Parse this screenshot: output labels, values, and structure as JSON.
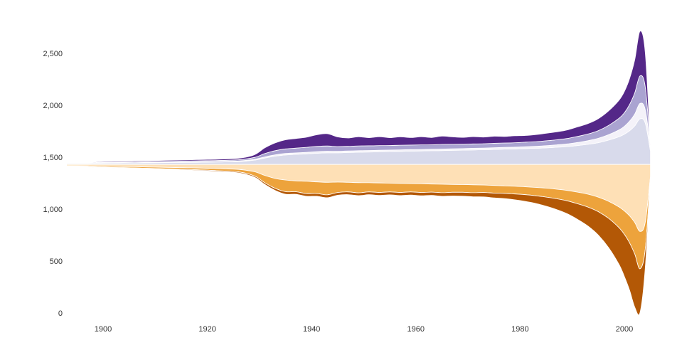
{
  "page": {
    "background": "#ffffff"
  },
  "chart_data": {
    "type": "area",
    "subtype": "streamgraph",
    "title": "",
    "xlabel": "",
    "ylabel": "",
    "legend": "none",
    "grid": "off",
    "axis_color": "#333333",
    "center_value": 1430,
    "y_axis_range": [
      0,
      2850
    ],
    "x_range": [
      1893,
      2005
    ],
    "x_ticks": [
      {
        "value": 1900,
        "label": "1900"
      },
      {
        "value": 1920,
        "label": "1920"
      },
      {
        "value": 1940,
        "label": "1940"
      },
      {
        "value": 1960,
        "label": "1960"
      },
      {
        "value": 1980,
        "label": "1980"
      },
      {
        "value": 2000,
        "label": "2000"
      }
    ],
    "y_ticks": [
      {
        "value": 0,
        "label": "0"
      },
      {
        "value": 500,
        "label": "500"
      },
      {
        "value": 1000,
        "label": "1,000"
      },
      {
        "value": 1500,
        "label": "1,500"
      },
      {
        "value": 2000,
        "label": "2,000"
      },
      {
        "value": 2500,
        "label": "2,500"
      }
    ],
    "upper_order": [
      "lavender",
      "pale-lavender",
      "medium-purple",
      "dark-purple"
    ],
    "lower_order": [
      "cream",
      "orange",
      "dark-orange"
    ],
    "years": [
      1893,
      1897,
      1900,
      1903,
      1906,
      1910,
      1914,
      1918,
      1922,
      1926,
      1929,
      1931,
      1933,
      1935,
      1937,
      1939,
      1941,
      1943,
      1945,
      1947,
      1949,
      1951,
      1953,
      1955,
      1957,
      1959,
      1961,
      1963,
      1965,
      1967,
      1969,
      1971,
      1973,
      1975,
      1977,
      1979,
      1981,
      1983,
      1985,
      1987,
      1989,
      1991,
      1993,
      1995,
      1997,
      1999,
      2000,
      2001,
      2002,
      2003,
      2004,
      2005
    ],
    "series": [
      {
        "name": "dark-purple",
        "color": "#542788",
        "values": [
          4,
          5,
          7,
          8,
          8,
          9,
          10,
          11,
          12,
          14,
          25,
          55,
          75,
          88,
          92,
          98,
          112,
          118,
          92,
          80,
          88,
          78,
          85,
          75,
          80,
          72,
          78,
          70,
          80,
          72,
          66,
          70,
          64,
          68,
          63,
          66,
          64,
          68,
          72,
          76,
          82,
          92,
          100,
          115,
          140,
          175,
          205,
          250,
          320,
          430,
          330,
          0
        ]
      },
      {
        "name": "medium-purple",
        "color": "#aaa3d1",
        "values": [
          4,
          4,
          6,
          6,
          7,
          8,
          9,
          10,
          10,
          12,
          18,
          32,
          40,
          44,
          46,
          48,
          50,
          50,
          46,
          45,
          46,
          45,
          45,
          44,
          45,
          44,
          44,
          43,
          44,
          43,
          42,
          42,
          42,
          43,
          42,
          43,
          44,
          45,
          47,
          49,
          52,
          58,
          64,
          74,
          90,
          112,
          130,
          160,
          205,
          265,
          220,
          15
        ]
      },
      {
        "name": "pale-lavender",
        "color": "#f4f2f9",
        "values": [
          2,
          2,
          3,
          3,
          3,
          4,
          4,
          5,
          5,
          6,
          8,
          11,
          13,
          14,
          14,
          15,
          16,
          16,
          15,
          15,
          15,
          15,
          15,
          15,
          15,
          15,
          15,
          15,
          15,
          15,
          15,
          16,
          16,
          16,
          17,
          17,
          18,
          19,
          21,
          23,
          26,
          30,
          35,
          42,
          52,
          66,
          76,
          92,
          115,
          148,
          130,
          40
        ]
      },
      {
        "name": "lavender",
        "color": "#d8daeb",
        "values": [
          9,
          10,
          13,
          14,
          15,
          17,
          19,
          21,
          24,
          28,
          42,
          62,
          80,
          92,
          98,
          102,
          108,
          112,
          112,
          115,
          118,
          120,
          122,
          124,
          126,
          128,
          130,
          132,
          134,
          136,
          138,
          140,
          142,
          145,
          148,
          150,
          153,
          156,
          160,
          166,
          172,
          182,
          194,
          210,
          235,
          268,
          292,
          325,
          372,
          440,
          400,
          130
        ]
      },
      {
        "name": "cream",
        "color": "#fee0b6",
        "values": [
          12,
          14,
          18,
          20,
          22,
          26,
          30,
          34,
          40,
          48,
          70,
          105,
          135,
          150,
          158,
          162,
          168,
          172,
          170,
          172,
          175,
          176,
          178,
          180,
          182,
          184,
          186,
          188,
          190,
          192,
          194,
          196,
          198,
          202,
          206,
          210,
          215,
          221,
          228,
          238,
          250,
          266,
          286,
          315,
          355,
          410,
          448,
          495,
          560,
          645,
          560,
          120
        ]
      },
      {
        "name": "orange",
        "color": "#eda33c",
        "values": [
          6,
          7,
          9,
          10,
          11,
          13,
          15,
          17,
          20,
          24,
          40,
          70,
          95,
          112,
          105,
          118,
          112,
          120,
          100,
          92,
          98,
          88,
          92,
          84,
          88,
          80,
          84,
          78,
          82,
          76,
          74,
          76,
          72,
          74,
          72,
          74,
          76,
          80,
          86,
          92,
          100,
          112,
          124,
          140,
          165,
          200,
          225,
          260,
          305,
          360,
          260,
          12
        ]
      },
      {
        "name": "dark-orange",
        "color": "#b35806",
        "values": [
          3,
          3,
          4,
          4,
          5,
          5,
          6,
          7,
          8,
          9,
          12,
          16,
          20,
          24,
          24,
          26,
          26,
          28,
          26,
          26,
          27,
          27,
          28,
          28,
          29,
          30,
          31,
          32,
          34,
          35,
          37,
          39,
          42,
          46,
          50,
          56,
          64,
          74,
          88,
          104,
          124,
          150,
          182,
          225,
          282,
          355,
          405,
          455,
          510,
          420,
          180,
          0
        ]
      }
    ]
  }
}
